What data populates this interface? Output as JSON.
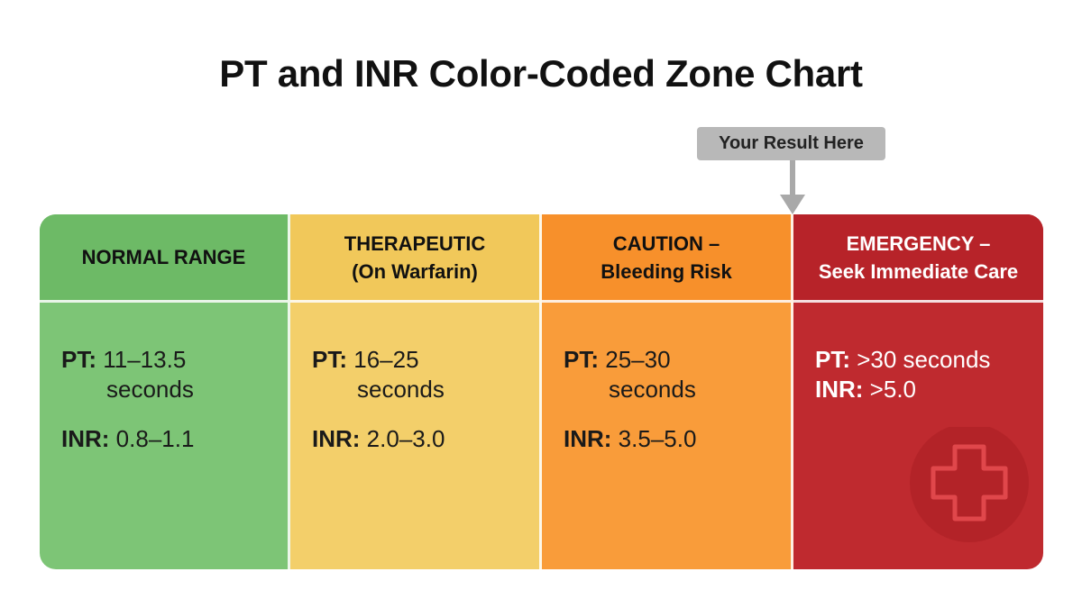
{
  "title": "PT and INR Color-Coded Zone Chart",
  "callout": {
    "label": "Your Result Here",
    "color": "#b8b8b8"
  },
  "zones": [
    {
      "id": "normal",
      "header_lines": [
        "NORMAL RANGE"
      ],
      "pt_label": "PT:",
      "pt_value": "11–13.5",
      "pt_unit": "seconds",
      "inr_label": "INR:",
      "inr_value": "0.8–1.1",
      "color": "#7dc576"
    },
    {
      "id": "therapeutic",
      "header_lines": [
        "THERAPEUTIC",
        "(On Warfarin)"
      ],
      "pt_label": "PT:",
      "pt_value": "16–25",
      "pt_unit": "seconds",
      "inr_label": "INR:",
      "inr_value": "2.0–3.0",
      "color": "#f3cf6a"
    },
    {
      "id": "caution",
      "header_lines": [
        "CAUTION –",
        "Bleeding Risk"
      ],
      "pt_label": "PT:",
      "pt_value": "25–30",
      "pt_unit": "seconds",
      "inr_label": "INR:",
      "inr_value": "3.5–5.0",
      "color": "#f99c3a"
    },
    {
      "id": "emergency",
      "header_lines": [
        "EMERGENCY –",
        "Seek Immediate Care"
      ],
      "pt_label": "PT:",
      "pt_value": ">30 seconds",
      "inr_label": "INR:",
      "inr_value": ">5.0",
      "color": "#bf2a2f",
      "icon": "medical-cross-icon"
    }
  ]
}
